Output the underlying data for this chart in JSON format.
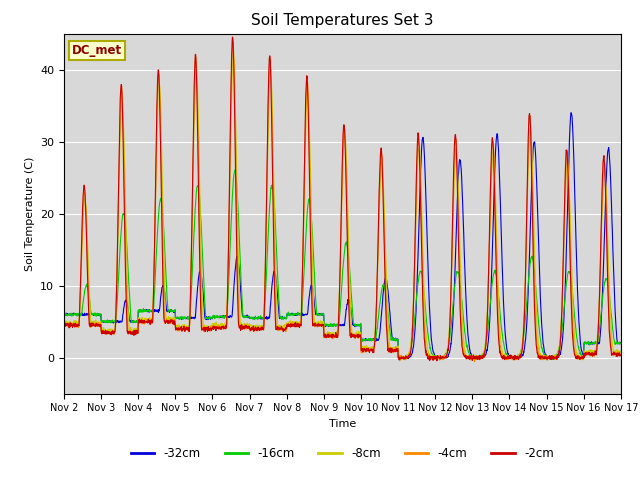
{
  "title": "Soil Temperatures Set 3",
  "xlabel": "Time",
  "ylabel": "Soil Temperature (C)",
  "ylim": [
    -5,
    45
  ],
  "xlim": [
    0,
    15
  ],
  "plot_bg_color": "#d8d8d8",
  "label_box_text": "DC_met",
  "legend_labels": [
    "-32cm",
    "-16cm",
    "-8cm",
    "-4cm",
    "-2cm"
  ],
  "legend_colors": [
    "#0000dd",
    "#00cc00",
    "#cccc00",
    "#ff8800",
    "#cc0000"
  ],
  "xtick_labels": [
    "Nov 2",
    "Nov 3",
    "Nov 4",
    "Nov 5",
    "Nov 6",
    "Nov 7",
    "Nov 8",
    "Nov 9",
    "Nov 10",
    "Nov 11",
    "Nov 12",
    "Nov 13",
    "Nov 14",
    "Nov 15",
    "Nov 16",
    "Nov 17"
  ],
  "xtick_positions": [
    0,
    1,
    2,
    3,
    4,
    5,
    6,
    7,
    8,
    9,
    10,
    11,
    12,
    13,
    14,
    15
  ]
}
